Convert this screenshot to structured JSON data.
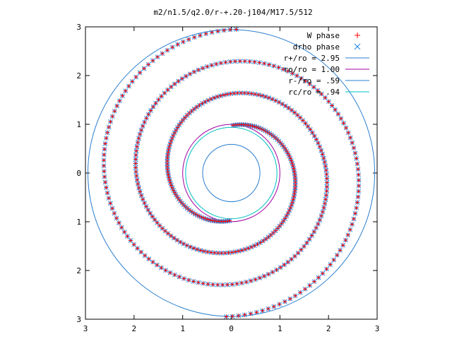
{
  "chart_data": {
    "type": "scatter",
    "title": "m2/n1.5/q2.0/r-+.20-j104/M17.5/512",
    "xlabel": "",
    "ylabel": "",
    "xlim": [
      -3,
      3
    ],
    "ylim": [
      -3,
      3
    ],
    "x_tick_labels": [
      "3",
      "2",
      "1",
      "0",
      "1",
      "2",
      "3"
    ],
    "y_tick_labels": [
      "3",
      "2",
      "1",
      "0",
      "1",
      "2",
      "3"
    ],
    "grid": false,
    "legend_position": "top-right",
    "colors": {
      "w_phase": "#ff0000",
      "drho_phase": "#1e88e5",
      "r_plus": "#2a7fcf",
      "ro": "#a000a0",
      "r_minus": "#2a7fcf",
      "rc": "#00c0c0",
      "axes": "#000000"
    },
    "series": [
      {
        "name": "W phase",
        "marker": "plus",
        "description_kind": "two-armed spiral scatter",
        "spirals": [
          {
            "theta_start_deg": 88,
            "r_start": 0.98,
            "r_end": 2.95,
            "turns": 1.5
          }
        ]
      },
      {
        "name": "drho phase",
        "marker": "x",
        "description_kind": "two-armed spiral scatter",
        "spirals": [
          {
            "theta_start_deg": 88,
            "r_start": 0.98,
            "r_end": 2.95,
            "turns": 1.5
          }
        ]
      }
    ],
    "circles": [
      {
        "name": "r+/ro = 2.95",
        "radius": 2.95
      },
      {
        "name": "ro/ro = 1.00",
        "radius": 1.0
      },
      {
        "name": "r-/ro = .59",
        "radius": 0.59
      },
      {
        "name": "rc/ro = .94",
        "radius": 0.94
      }
    ]
  }
}
